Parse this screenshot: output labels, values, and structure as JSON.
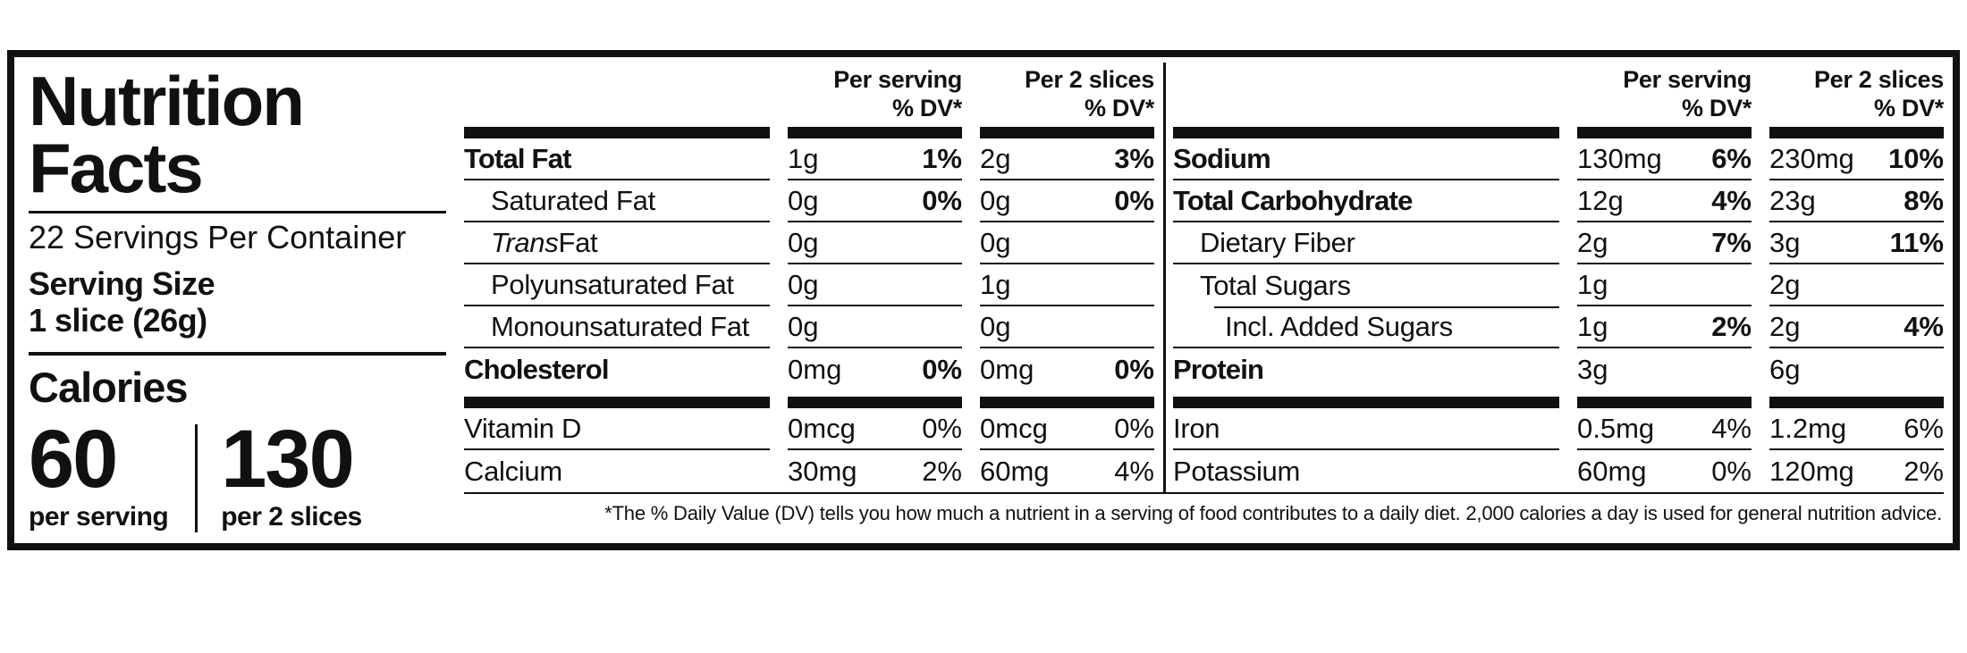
{
  "colors": {
    "ink": "#111111",
    "background": "#ffffff"
  },
  "left_panel": {
    "title_line1": "Nutrition",
    "title_line2": "Facts",
    "servings_per_container": "22 Servings Per Container",
    "serving_size_label": "Serving Size",
    "serving_size_value": "1 slice (26g)",
    "calories_label": "Calories",
    "calories_per_serving": {
      "value": "60",
      "caption": "per serving"
    },
    "calories_per_2_slices": {
      "value": "130",
      "caption": "per 2 slices"
    }
  },
  "header": {
    "per_serving": "Per serving",
    "per_2_slices": "Per 2 slices",
    "dv": "% DV*"
  },
  "tables": [
    {
      "main": [
        {
          "name": "Total Fat",
          "bold": true,
          "dv_bold": true,
          "amount1": "1g",
          "dv1": "1%",
          "amount2": "2g",
          "dv2": "3%"
        },
        {
          "name": "Saturated Fat",
          "indent": 1,
          "dv_bold": true,
          "amount1": "0g",
          "dv1": "0%",
          "amount2": "0g",
          "dv2": "0%"
        },
        {
          "italic": "Trans",
          "name": " Fat",
          "indent": 1,
          "amount1": "0g",
          "amount2": "0g"
        },
        {
          "name": "Polyunsaturated Fat",
          "indent": 1,
          "amount1": "0g",
          "amount2": "1g"
        },
        {
          "name": "Monounsaturated Fat",
          "indent": 1,
          "amount1": "0g",
          "amount2": "0g"
        },
        {
          "name": "Cholesterol",
          "bold": true,
          "dv_bold": true,
          "amount1": "0mg",
          "dv1": "0%",
          "amount2": "0mg",
          "dv2": "0%"
        }
      ],
      "micro": [
        {
          "name": "Vitamin D",
          "amount1": "0mcg",
          "dv1": "0%",
          "amount2": "0mcg",
          "dv2": "0%"
        },
        {
          "name": "Calcium",
          "amount1": "30mg",
          "dv1": "2%",
          "amount2": "60mg",
          "dv2": "4%"
        }
      ]
    },
    {
      "main": [
        {
          "name": "Sodium",
          "bold": true,
          "dv_bold": true,
          "amount1": "130mg",
          "dv1": "6%",
          "amount2": "230mg",
          "dv2": "10%"
        },
        {
          "name": "Total Carbohydrate",
          "bold": true,
          "dv_bold": true,
          "amount1": "12g",
          "dv1": "4%",
          "amount2": "23g",
          "dv2": "8%"
        },
        {
          "name": "Dietary Fiber",
          "indent": 1,
          "dv_bold": true,
          "amount1": "2g",
          "dv1": "7%",
          "amount2": "3g",
          "dv2": "11%"
        },
        {
          "name": "Total Sugars",
          "indent": 1,
          "sep_indent": true,
          "amount1": "1g",
          "amount2": "2g"
        },
        {
          "name": "Incl. Added Sugars",
          "indent": 2,
          "dv_bold": true,
          "amount1": "1g",
          "dv1": "2%",
          "amount2": "2g",
          "dv2": "4%"
        },
        {
          "name": "Protein",
          "bold": true,
          "amount1": "3g",
          "amount2": "6g"
        }
      ],
      "micro": [
        {
          "name": "Iron",
          "amount1": "0.5mg",
          "dv1": "4%",
          "amount2": "1.2mg",
          "dv2": "6%"
        },
        {
          "name": "Potassium",
          "amount1": "60mg",
          "dv1": "0%",
          "amount2": "120mg",
          "dv2": "2%"
        }
      ]
    }
  ],
  "footnote": "*The % Daily Value (DV) tells you how much a nutrient in a serving of food contributes to a daily diet. 2,000 calories a day is used for general nutrition advice."
}
